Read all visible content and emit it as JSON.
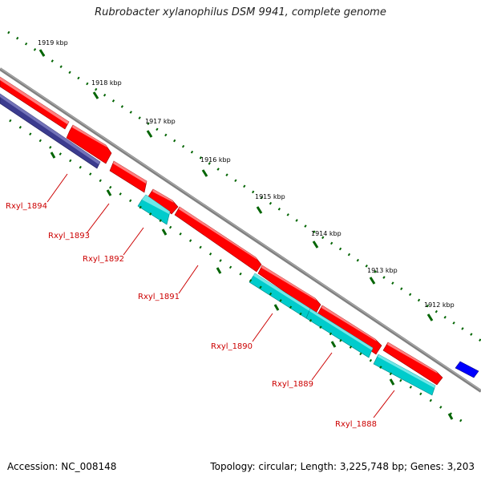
{
  "header": {
    "title": "Rubrobacter xylanophilus DSM 9941, complete genome"
  },
  "footer": {
    "accession": "Accession: NC_008148",
    "topology": "Topology: circular; Length: 3,225,748 bp; Genes: 3,203"
  },
  "kbp_ticks": [
    {
      "label": "1919 kbp"
    },
    {
      "label": "1918 kbp"
    },
    {
      "label": "1917 kbp"
    },
    {
      "label": "1916 kbp"
    },
    {
      "label": "1915 kbp"
    },
    {
      "label": "1914 kbp"
    },
    {
      "label": "1913 kbp"
    },
    {
      "label": "1912 kbp"
    }
  ],
  "genes": [
    {
      "label": "Rxyl_1894",
      "color": "#3b3b8e"
    },
    {
      "label": "Rxyl_1893",
      "color": "#ff0000"
    },
    {
      "label": "Rxyl_1892",
      "color": "#00cccc"
    },
    {
      "label": "Rxyl_1891",
      "color": "#ff0000"
    },
    {
      "label": "Rxyl_1890",
      "color": "#00cccc"
    },
    {
      "label": "Rxyl_1889",
      "color": "#00cccc"
    },
    {
      "label": "Rxyl_1888",
      "color": "#00cccc"
    }
  ],
  "colors": {
    "backbone": "#808080",
    "cds_forward": "#ff0000",
    "rna": "#00cccc",
    "other_strand": "#3b3b8e",
    "blue_feature": "#0000ff",
    "tick_marks": "#006400",
    "gene_label": "#cc0000"
  }
}
